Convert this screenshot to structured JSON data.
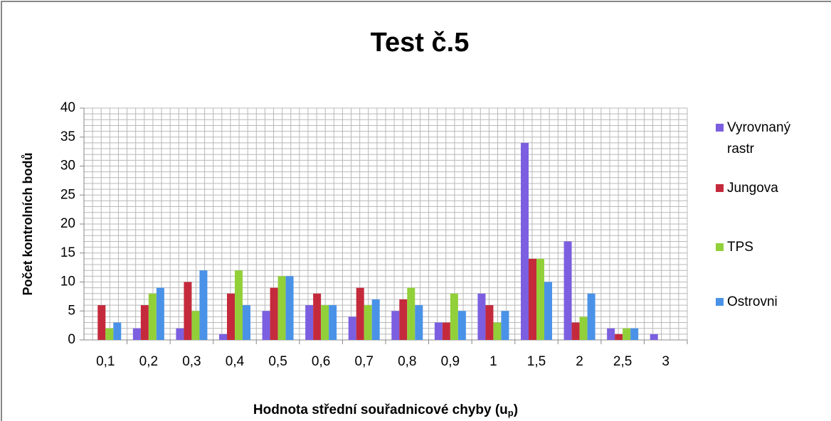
{
  "chart_data": {
    "type": "bar",
    "title": "Test č.5",
    "y_label": "Počet kontrolních bodů",
    "x_label": {
      "text": "Hodnota střední souřadnicové chyby (u",
      "subscript": "p",
      "suffix": ")"
    },
    "categories": [
      "0,1",
      "0,2",
      "0,3",
      "0,4",
      "0,5",
      "0,6",
      "0,7",
      "0,8",
      "0,9",
      "1",
      "1,5",
      "2",
      "2,5",
      "3"
    ],
    "series": [
      {
        "name": "Vyrovnaný rastr",
        "color": "#7b5fe0",
        "values": [
          0,
          2,
          2,
          1,
          5,
          6,
          4,
          5,
          3,
          8,
          34,
          17,
          2,
          1
        ]
      },
      {
        "name": "Jungova",
        "color": "#c42a3c",
        "values": [
          6,
          6,
          10,
          8,
          9,
          8,
          9,
          7,
          3,
          6,
          14,
          3,
          1,
          0
        ]
      },
      {
        "name": "TPS",
        "color": "#92d03a",
        "values": [
          2,
          8,
          5,
          12,
          11,
          6,
          6,
          9,
          8,
          3,
          14,
          4,
          2,
          0
        ]
      },
      {
        "name": "Ostrovni",
        "color": "#4a92e8",
        "values": [
          3,
          9,
          12,
          6,
          11,
          6,
          7,
          6,
          5,
          5,
          10,
          8,
          2,
          0
        ]
      }
    ],
    "ylim": [
      0,
      40
    ],
    "yticks": [
      0,
      5,
      10,
      15,
      20,
      25,
      30,
      35,
      40
    ],
    "grid": true,
    "grid_step": 1,
    "x_grid_per_category": 5,
    "legend": "right"
  }
}
